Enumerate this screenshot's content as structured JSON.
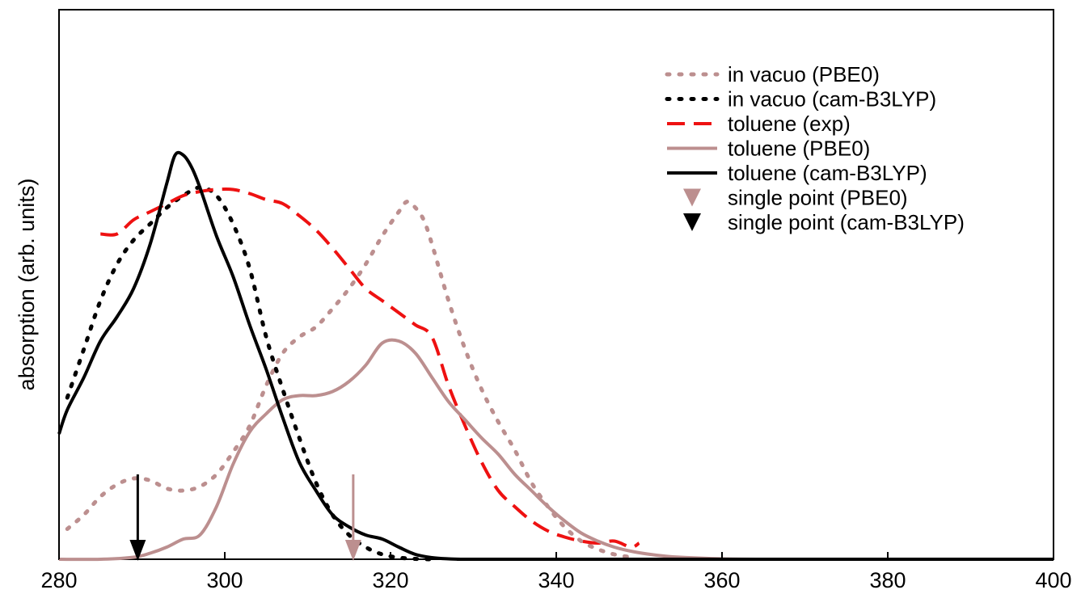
{
  "chart_data": {
    "type": "line",
    "xlabel": "",
    "ylabel": "absorption (arb. units)",
    "xlim": [
      280,
      400
    ],
    "ylim": [
      0,
      1.0
    ],
    "xticks": [
      280,
      300,
      320,
      340,
      360,
      380,
      400
    ],
    "xtick_labels": [
      "280",
      "300",
      "320",
      "340",
      "360",
      "380",
      "400"
    ],
    "grid": false,
    "legend_position": "top-right",
    "series": [
      {
        "name": "in vacuo (PBE0)",
        "color": "#bc8f8f",
        "style": "dotted",
        "x": [
          281,
          283,
          285,
          287,
          289,
          291,
          293,
          295,
          297,
          299,
          301,
          303,
          305,
          307,
          309,
          311,
          313,
          315,
          317,
          319,
          321,
          322,
          323,
          324,
          325,
          327,
          329,
          331,
          333,
          335,
          337,
          339,
          341,
          343,
          345,
          347,
          349
        ],
        "y": [
          0.075,
          0.11,
          0.155,
          0.185,
          0.2,
          0.195,
          0.175,
          0.17,
          0.18,
          0.21,
          0.265,
          0.33,
          0.43,
          0.51,
          0.55,
          0.575,
          0.62,
          0.67,
          0.73,
          0.8,
          0.86,
          0.885,
          0.87,
          0.84,
          0.78,
          0.64,
          0.52,
          0.42,
          0.34,
          0.27,
          0.19,
          0.13,
          0.08,
          0.045,
          0.025,
          0.012,
          0.005
        ]
      },
      {
        "name": "in vacuo (cam-B3LYP)",
        "color": "#000000",
        "style": "dotted",
        "x": [
          281,
          283,
          285,
          287,
          289,
          291,
          293,
          295,
          297,
          299,
          301,
          303,
          305,
          307,
          309,
          311,
          313,
          315,
          317,
          319,
          321,
          323,
          325
        ],
        "y": [
          0.4,
          0.52,
          0.64,
          0.73,
          0.79,
          0.83,
          0.87,
          0.9,
          0.92,
          0.9,
          0.83,
          0.72,
          0.55,
          0.42,
          0.3,
          0.19,
          0.11,
          0.06,
          0.03,
          0.012,
          0.004,
          0.001,
          0.0
        ]
      },
      {
        "name": "toluene (exp)",
        "color": "#ee1111",
        "style": "dashed",
        "x": [
          285,
          287,
          289,
          291,
          293,
          295,
          297,
          299,
          301,
          303,
          305,
          307,
          309,
          311,
          313,
          315,
          317,
          319,
          321,
          323,
          325,
          327,
          329,
          331,
          333,
          335,
          337,
          339,
          341,
          343,
          345,
          347,
          349,
          350
        ],
        "y": [
          0.805,
          0.805,
          0.84,
          0.86,
          0.88,
          0.9,
          0.91,
          0.915,
          0.915,
          0.905,
          0.89,
          0.88,
          0.85,
          0.815,
          0.77,
          0.72,
          0.67,
          0.64,
          0.61,
          0.58,
          0.55,
          0.43,
          0.33,
          0.24,
          0.17,
          0.13,
          0.095,
          0.07,
          0.055,
          0.045,
          0.04,
          0.045,
          0.03,
          0.04
        ]
      },
      {
        "name": "toluene (PBE0)",
        "color": "#bc8f8f",
        "style": "solid",
        "x": [
          280,
          285,
          289,
          291,
          293,
          295,
          297,
          299,
          301,
          303,
          305,
          307,
          309,
          311,
          313,
          315,
          317,
          319,
          321,
          323,
          325,
          327,
          329,
          331,
          333,
          335,
          337,
          339,
          341,
          343,
          345,
          347,
          349,
          351,
          353,
          355,
          360,
          365,
          370,
          400
        ],
        "y": [
          0.0,
          0.0,
          0.005,
          0.015,
          0.03,
          0.05,
          0.06,
          0.13,
          0.235,
          0.315,
          0.36,
          0.395,
          0.405,
          0.405,
          0.415,
          0.44,
          0.48,
          0.535,
          0.54,
          0.51,
          0.45,
          0.39,
          0.345,
          0.3,
          0.26,
          0.21,
          0.17,
          0.13,
          0.095,
          0.065,
          0.045,
          0.03,
          0.02,
          0.013,
          0.008,
          0.005,
          0.001,
          0.0,
          0.0,
          0.0
        ]
      },
      {
        "name": "toluene (cam-B3LYP)",
        "color": "#000000",
        "style": "solid",
        "x": [
          280,
          281,
          283,
          285,
          287,
          289,
          291,
          293,
          294,
          295,
          296,
          297,
          299,
          301,
          303,
          305,
          307,
          309,
          311,
          313,
          315,
          317,
          319,
          321,
          323,
          325,
          327,
          329,
          335,
          400
        ],
        "y": [
          0.31,
          0.37,
          0.45,
          0.54,
          0.6,
          0.67,
          0.78,
          0.93,
          1.0,
          1.0,
          0.97,
          0.92,
          0.8,
          0.7,
          0.58,
          0.47,
          0.35,
          0.24,
          0.17,
          0.11,
          0.08,
          0.06,
          0.05,
          0.03,
          0.012,
          0.004,
          0.001,
          0.0,
          0.0,
          0.0
        ]
      }
    ],
    "markers": [
      {
        "name": "single point (PBE0)",
        "color": "#bc8f8f",
        "symbol": "triangle-down",
        "x": 315.5,
        "y": 0.0,
        "arrow_top_y": 0.21
      },
      {
        "name": "single point (cam-B3LYP)",
        "color": "#000000",
        "symbol": "triangle-down",
        "x": 289.5,
        "y": 0.0,
        "arrow_top_y": 0.21
      }
    ]
  }
}
